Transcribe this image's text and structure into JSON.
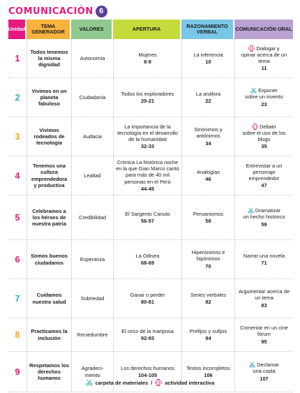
{
  "title": {
    "part1": "COMUNICACIÓN",
    "grade": "6"
  },
  "headers": {
    "unidad": "Unidad",
    "tema": "TEMA GENERADOR",
    "valores": "VALORES",
    "apertura": "APERTURA",
    "razonamiento": "RAZONAMIENTO VERBAL",
    "comunicacion": "COMUNICACIÓN ORAL"
  },
  "colors": {
    "unit1": "#e5197f",
    "unit2": "#3fa7c4",
    "unit3": "#f2a81d",
    "unit4": "#e5197f",
    "unit5": "#e5197f",
    "unit6": "#e5197f",
    "unit7": "#3fa7c4",
    "unit8": "#f2a81d",
    "unit9": "#e5197f"
  },
  "rows": [
    {
      "unidad": "1",
      "tema": "Todos tenemos la misma dignidad",
      "valor": "Autonomía",
      "apertura_text": "Mujeres",
      "apertura_pages": "8-9",
      "razon_text": "La inferencia",
      "razon_pages": "10",
      "com_icon": "interactive-icon",
      "com_first": "Dialogar y",
      "com_rest": "opinar acerca de un tema",
      "com_pages": "11"
    },
    {
      "unidad": "2",
      "tema": "Vivimos en un planeta fabuloso",
      "valor": "Ciudadanía",
      "apertura_text": "Todos los exploradores",
      "apertura_pages": "20-21",
      "razon_text": "La anáfora",
      "razon_pages": "22",
      "com_icon": "scissors-icon",
      "com_first": "Exponer",
      "com_rest": "sobre un invento",
      "com_pages": "23"
    },
    {
      "unidad": "3",
      "tema": "Vivimos rodeados de tecnología",
      "valor": "Audacia",
      "apertura_text": "La importancia de la tecnología en el desarrollo de la humanidad",
      "apertura_pages": "32-33",
      "razon_text": "Sinónimos y antónimos",
      "razon_pages": "34",
      "com_icon": "interactive-icon",
      "com_first": "Debatir",
      "com_rest": "sobre el uso de los blogs",
      "com_pages": "35"
    },
    {
      "unidad": "4",
      "tema": "Tenemos una cultura emprendedora y productiva",
      "valor": "Lealtad",
      "apertura_text": "Crónica La histórica noche en la que Gian Marco cantó para más de 40 mil personas en el Perú",
      "apertura_pages": "44-45",
      "razon_text": "Analogías",
      "razon_pages": "46",
      "com_icon": "",
      "com_first": "",
      "com_rest": "Entrevistar a un personaje emprendedor",
      "com_pages": "47"
    },
    {
      "unidad": "5",
      "tema": "Celebramos a los héroes de nuestra patria",
      "valor": "Credibilidad",
      "apertura_text": "El Sargento Canuto",
      "apertura_pages": "56-57",
      "razon_text": "Peruanismos",
      "razon_pages": "58",
      "com_icon": "scissors-icon",
      "com_first": "Dramatizar",
      "com_rest": "un hecho histórico",
      "com_pages": "59"
    },
    {
      "unidad": "6",
      "tema": "Somos buenos ciudadanos",
      "valor": "Esperanza",
      "apertura_text": "La Odisea",
      "apertura_pages": "68-69",
      "razon_text": "Hiperónimos e hipónimos",
      "razon_pages": "70",
      "com_icon": "",
      "com_first": "",
      "com_rest": "Narrar una novela",
      "com_pages": "71"
    },
    {
      "unidad": "7",
      "tema": "Cuidamos nuestra salud",
      "valor": "Sobriedad",
      "apertura_text": "Ganar o perder",
      "apertura_pages": "80-81",
      "razon_text": "Series verbales",
      "razon_pages": "82",
      "com_icon": "",
      "com_first": "",
      "com_rest": "Argumentar acerca de un tema",
      "com_pages": "83"
    },
    {
      "unidad": "8",
      "tema": "Practicamos la inclusión",
      "valor": "Reciedumbre",
      "apertura_text": "El circo de la mariposa",
      "apertura_pages": "92-93",
      "razon_text": "Prefijos y sufijos",
      "razon_pages": "94",
      "com_icon": "",
      "com_first": "",
      "com_rest": "Comentar en un cine fórum",
      "com_pages": "95"
    },
    {
      "unidad": "9",
      "tema": "Respetamos los derechos humanos",
      "valor": "Agradeci- miento",
      "apertura_text": "Los derechos humanos",
      "apertura_pages": "104-105",
      "razon_text": "Textos incompletos",
      "razon_pages": "106",
      "com_icon": "scissors-icon",
      "com_first": "Declamar",
      "com_rest": "una copla",
      "com_pages": "107"
    }
  ],
  "legend": {
    "materiales": "carpeta de materiales",
    "slash": "/",
    "interactiva": "actividad interactiva"
  }
}
